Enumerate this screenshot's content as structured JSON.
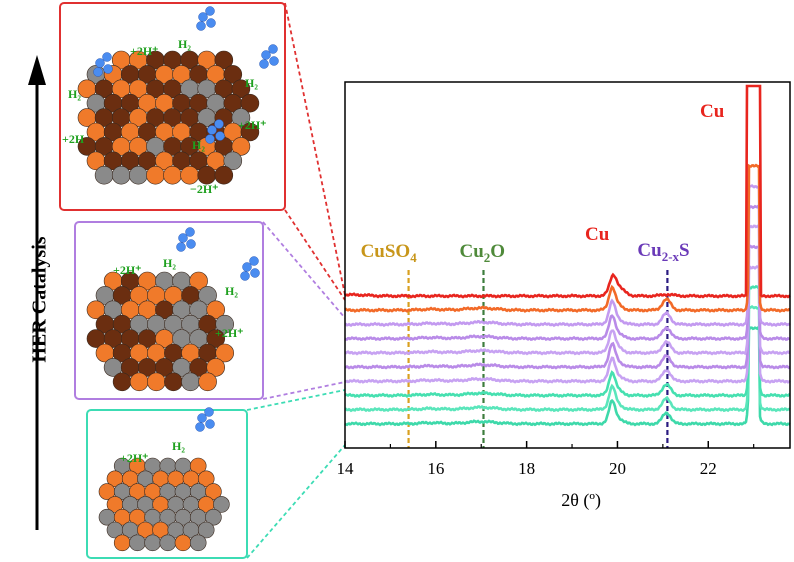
{
  "axis_label": "HER Catalysis",
  "insets": [
    {
      "name": "top",
      "border": "#e03030",
      "fill_counts": {
        "copper": "orange",
        "brown": "dark",
        "gray": "sulfur"
      },
      "labels": [
        "+2H⁺",
        "H₂",
        "H₂",
        "H₂",
        "+2H⁺",
        "+2H",
        "H₂",
        "−2H⁺"
      ]
    },
    {
      "name": "middle",
      "border": "#b07ee0",
      "labels": [
        "+2H⁺",
        "H₂",
        "H₂",
        "+2H⁺"
      ]
    },
    {
      "name": "bottom",
      "border": "#3cdcb4",
      "labels": [
        "+2H⁺",
        "H₂"
      ]
    }
  ],
  "chart_data": {
    "type": "line",
    "xlabel": "2θ (º)",
    "ylabel": "",
    "xlim": [
      14,
      23.8
    ],
    "xticks": [
      14,
      16,
      18,
      20,
      22
    ],
    "peak_positions": [
      19.9,
      21.1,
      23.0
    ],
    "series": [
      {
        "color": "#e8251e",
        "offset": 9,
        "role": "top"
      },
      {
        "color": "#f26a28",
        "offset": 8
      },
      {
        "color": "#c39af0",
        "offset": 7
      },
      {
        "color": "#b98be8",
        "offset": 6
      },
      {
        "color": "#c7a2f2",
        "offset": 5
      },
      {
        "color": "#b98be8",
        "offset": 4
      },
      {
        "color": "#c7a2f2",
        "offset": 3
      },
      {
        "color": "#46e0b0",
        "offset": 2
      },
      {
        "color": "#5ae6bb",
        "offset": 1
      },
      {
        "color": "#3ed9aa",
        "offset": 0
      }
    ],
    "reference_lines": [
      {
        "label_main": "CuSO",
        "label_sub": "4",
        "label_tail": "",
        "x": 15.4,
        "color": "#d9a020"
      },
      {
        "label_main": "Cu",
        "label_sub": "2",
        "label_tail": "O",
        "x": 17.05,
        "color": "#3d7d3d"
      },
      {
        "label_main": "Cu",
        "label_sub": "2-x",
        "label_tail": "S",
        "x": 21.1,
        "color": "#2a1a80"
      }
    ],
    "annotations": [
      {
        "text": "Cu",
        "x": 19.55,
        "color": "#e8251e"
      },
      {
        "text": "Cu",
        "x": 22.65,
        "color": "#e8251e"
      }
    ],
    "label_colors": {
      "CuSO4": "#c8961a",
      "Cu2O": "#4f8a3a",
      "Cu2xS": "#6a3ab8"
    }
  }
}
